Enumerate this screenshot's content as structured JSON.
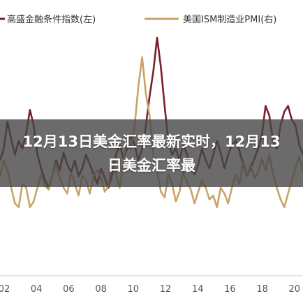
{
  "banner": {
    "text": "12月13日美金汇率最新实时，12月13日美金汇率最"
  },
  "chart_data": {
    "type": "line",
    "legend": [
      "高盛金融条件指数(左)",
      "美国ISM制造业PMI(右)"
    ],
    "x_ticks": [
      "02",
      "04",
      "06",
      "08",
      "10",
      "12",
      "14",
      "16",
      "18",
      "20"
    ],
    "series": [
      {
        "name": "高盛金融条件指数(左)",
        "color": "#7b1e2c",
        "values": [
          52,
          58,
          72,
          63,
          55,
          62,
          58,
          66,
          78,
          70,
          55,
          48,
          42,
          38,
          44,
          52,
          47,
          56,
          50,
          46,
          52,
          44,
          48,
          55,
          50,
          45,
          40,
          48,
          43,
          38,
          45,
          55,
          60,
          53,
          58,
          65,
          60,
          52,
          58,
          70,
          85,
          98,
          115,
          100,
          80,
          62,
          55,
          58,
          52,
          60,
          55,
          48,
          45,
          50,
          58,
          52,
          48,
          55,
          62,
          56,
          48,
          55,
          60,
          62,
          57,
          50,
          44,
          48,
          53,
          58,
          65,
          80,
          75,
          62,
          58,
          70,
          77,
          80,
          73,
          70,
          60,
          55
        ]
      },
      {
        "name": "美国ISM制造业PMI(右)",
        "color": "#c9a468",
        "values": [
          44,
          52,
          47,
          38,
          30,
          28,
          40,
          38,
          28,
          31,
          38,
          45,
          39,
          37,
          44,
          50,
          43,
          38,
          35,
          46,
          40,
          34,
          44,
          42,
          35,
          44,
          47,
          43,
          36,
          39,
          53,
          45,
          38,
          50,
          65,
          58,
          70,
          90,
          105,
          86,
          75,
          54,
          47,
          36,
          33,
          45,
          40,
          31,
          36,
          46,
          41,
          37,
          30,
          36,
          42,
          38,
          32,
          34,
          28,
          38,
          35,
          30,
          38,
          45,
          40,
          52,
          44,
          50,
          43,
          46,
          53,
          47,
          55,
          45,
          38,
          32,
          28,
          35,
          42,
          48,
          54,
          46
        ]
      }
    ],
    "legend_position": "top",
    "grid": false
  }
}
